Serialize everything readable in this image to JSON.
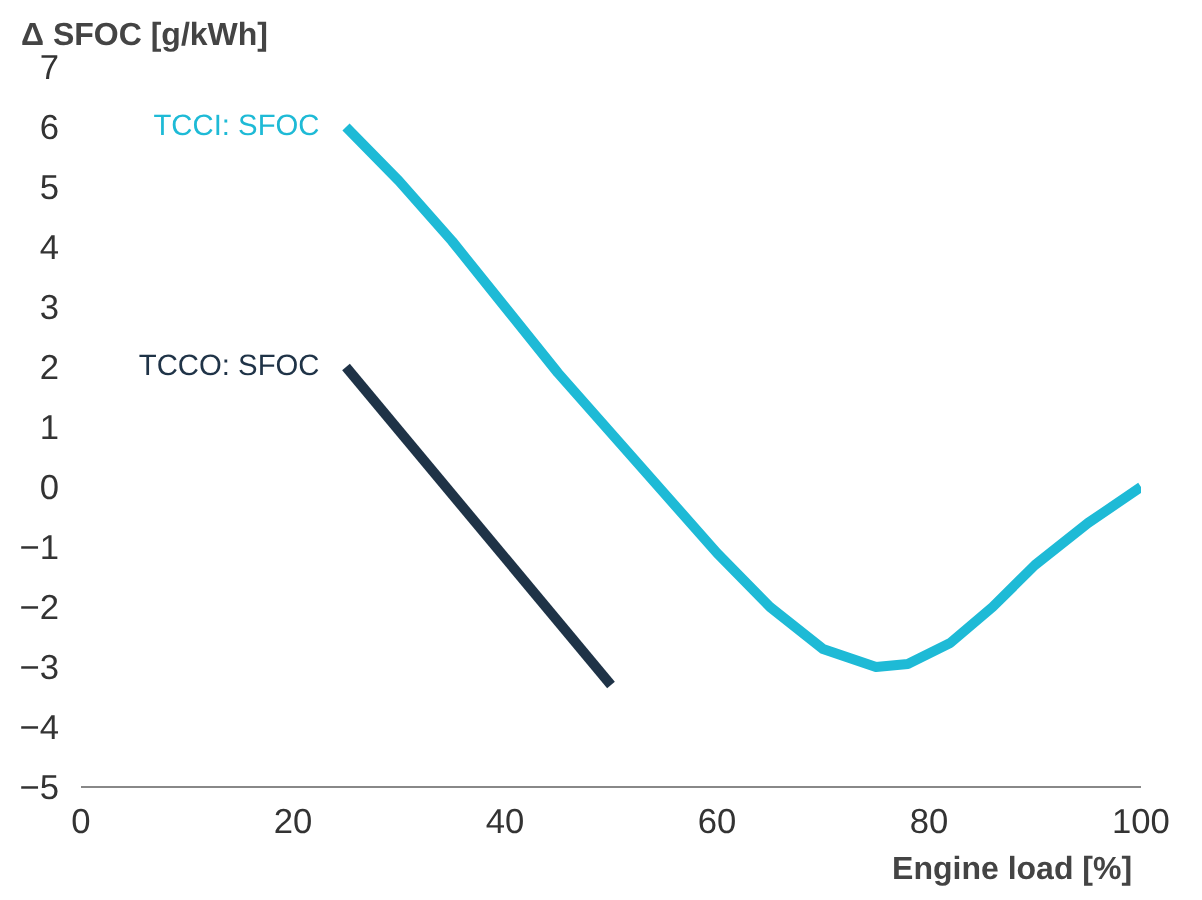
{
  "chart_data": {
    "type": "line",
    "ylabel": "Δ SFOC [g/kWh]",
    "xlabel": "Engine load  [%]",
    "xlim": [
      0,
      100
    ],
    "xticks": [
      0,
      20,
      40,
      60,
      80,
      100
    ],
    "ylim": [
      -5,
      7
    ],
    "yticks": [
      -5,
      -4,
      -3,
      -2,
      -1,
      0,
      1,
      2,
      3,
      4,
      5,
      6,
      7
    ],
    "grid": false,
    "series": [
      {
        "name": "TCCI: SFOC",
        "color": "#1ebad6",
        "x": [
          25,
          30,
          35,
          40,
          45,
          50,
          55,
          60,
          65,
          70,
          75,
          78,
          82,
          86,
          90,
          95,
          100
        ],
        "values": [
          6,
          5.1,
          4.1,
          3.0,
          1.9,
          0.9,
          -0.1,
          -1.1,
          -2.0,
          -2.7,
          -3.0,
          -2.95,
          -2.6,
          -2.0,
          -1.3,
          -0.6,
          0
        ]
      },
      {
        "name": "TCCO: SFOC",
        "color": "#1f3347",
        "x": [
          25,
          50
        ],
        "values": [
          2,
          -3.3
        ]
      }
    ]
  }
}
